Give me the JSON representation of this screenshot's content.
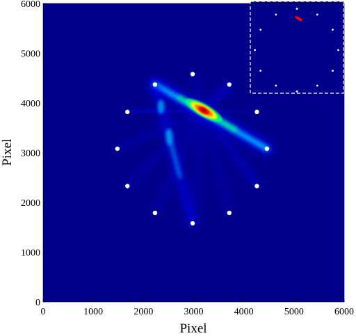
{
  "chart_data": {
    "type": "heatmap",
    "title": "",
    "xlabel": "Pixel",
    "ylabel": "Pixel",
    "xlim": [
      0,
      6000
    ],
    "ylim": [
      0,
      6000
    ],
    "x_ticks": [
      "0",
      "1000",
      "2000",
      "3000",
      "4000",
      "5000",
      "6000"
    ],
    "y_ticks": [
      "0",
      "1000",
      "2000",
      "3000",
      "4000",
      "5000",
      "6000"
    ],
    "background_color": "#00008b",
    "colormap": [
      "#00008b",
      "#0000ff",
      "#00bfff",
      "#00ff80",
      "#ffff00",
      "#ff8000",
      "#ff0000",
      "#8b0000"
    ],
    "grid": false,
    "legend": "none",
    "peak": {
      "x": 3200,
      "y": 3850,
      "level": 1.0
    },
    "markers": [
      {
        "x": 2980,
        "y": 4580
      },
      {
        "x": 3710,
        "y": 4370
      },
      {
        "x": 4260,
        "y": 3820
      },
      {
        "x": 4460,
        "y": 3080
      },
      {
        "x": 4260,
        "y": 2330
      },
      {
        "x": 3710,
        "y": 1790
      },
      {
        "x": 2980,
        "y": 1580
      },
      {
        "x": 2230,
        "y": 1790
      },
      {
        "x": 1680,
        "y": 2330
      },
      {
        "x": 1480,
        "y": 3080
      },
      {
        "x": 1680,
        "y": 3820
      },
      {
        "x": 2230,
        "y": 4370
      }
    ],
    "inset": {
      "position": "top-right",
      "border": "dashed",
      "peak_color": "#ff0000"
    }
  }
}
